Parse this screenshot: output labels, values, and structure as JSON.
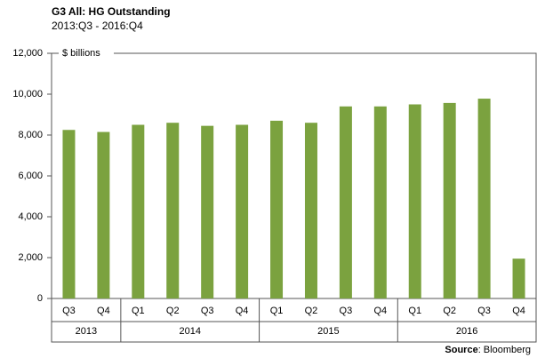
{
  "chart_data": {
    "type": "bar",
    "title": "G3 All: HG Outstanding",
    "subtitle": "2013:Q3 - 2016:Q4",
    "y_label": "$ billions",
    "source_label": "Source",
    "source_text": ": Bloomberg",
    "groups": [
      {
        "name": "2013",
        "categories": [
          "Q3",
          "Q4"
        ]
      },
      {
        "name": "2014",
        "categories": [
          "Q1",
          "Q2",
          "Q3",
          "Q4"
        ]
      },
      {
        "name": "2015",
        "categories": [
          "Q1",
          "Q2",
          "Q3",
          "Q4"
        ]
      },
      {
        "name": "2016",
        "categories": [
          "Q1",
          "Q2",
          "Q3",
          "Q4"
        ]
      }
    ],
    "values": [
      8250,
      8150,
      8500,
      8600,
      8450,
      8500,
      8700,
      8600,
      9400,
      9400,
      9500,
      9570,
      9780,
      1950
    ],
    "color": "#7ba23f",
    "ylim": [
      0,
      12000
    ],
    "yticks": [
      0,
      {
        "value": 2000,
        "label": "2,000"
      },
      {
        "value": 4000,
        "label": "4,000"
      },
      {
        "value": 6000,
        "label": "6,000"
      },
      {
        "value": 8000,
        "label": "8,000"
      },
      {
        "value": 10000,
        "label": "10,000"
      },
      {
        "value": 12000,
        "label": "12,000"
      }
    ]
  }
}
